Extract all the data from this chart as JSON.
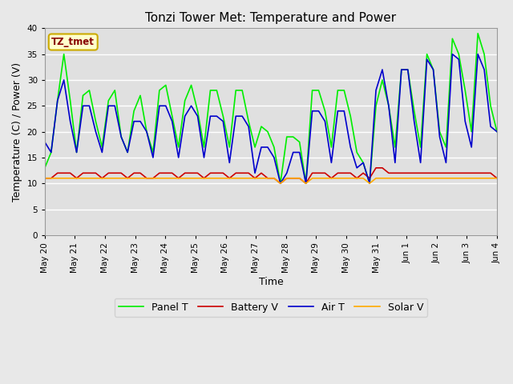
{
  "title": "Tonzi Tower Met: Temperature and Power",
  "xlabel": "Time",
  "ylabel": "Temperature (C) / Power (V)",
  "ylim": [
    0,
    40
  ],
  "yticks": [
    0,
    5,
    10,
    15,
    20,
    25,
    30,
    35,
    40
  ],
  "panel_color": "#00ee00",
  "battery_color": "#cc0000",
  "air_color": "#0000cc",
  "solar_color": "#ffaa00",
  "legend_label": "TZ_tmet",
  "series_names": [
    "Panel T",
    "Battery V",
    "Air T",
    "Solar V"
  ],
  "x_tick_labels": [
    "May 20",
    "May 21",
    "May 22",
    "May 23",
    "May 24",
    "May 25",
    "May 26",
    "May 27",
    "May 28",
    "May 29",
    "May 30",
    "May 31",
    "Jun 1",
    "Jun 2",
    "Jun 3",
    "Jun 4"
  ],
  "panel_t": [
    13,
    16,
    26,
    35,
    26,
    16,
    27,
    28,
    22,
    17,
    26,
    28,
    19,
    16,
    24,
    27,
    20,
    16,
    28,
    29,
    23,
    17,
    26,
    29,
    24,
    17,
    28,
    28,
    23,
    17,
    28,
    28,
    22,
    17,
    21,
    20,
    17,
    10,
    19,
    19,
    18,
    10,
    28,
    28,
    24,
    17,
    28,
    28,
    23,
    16,
    14,
    10,
    25,
    30,
    25,
    17,
    32,
    32,
    24,
    17,
    35,
    32,
    20,
    17,
    38,
    35,
    28,
    20,
    39,
    35,
    25,
    20
  ],
  "battery_v": [
    11,
    11,
    12,
    12,
    12,
    11,
    12,
    12,
    12,
    11,
    12,
    12,
    12,
    11,
    12,
    12,
    11,
    11,
    12,
    12,
    12,
    11,
    12,
    12,
    12,
    11,
    12,
    12,
    12,
    11,
    12,
    12,
    12,
    11,
    12,
    11,
    11,
    10,
    11,
    11,
    11,
    10,
    12,
    12,
    12,
    11,
    12,
    12,
    12,
    11,
    12,
    11,
    13,
    13,
    12,
    12,
    12,
    12,
    12,
    12,
    12,
    12,
    12,
    12,
    12,
    12,
    12,
    12,
    12,
    12,
    12,
    11
  ],
  "air_t": [
    18,
    16,
    26,
    30,
    22,
    16,
    25,
    25,
    20,
    16,
    25,
    25,
    19,
    16,
    22,
    22,
    20,
    15,
    25,
    25,
    22,
    15,
    23,
    25,
    23,
    15,
    23,
    23,
    22,
    14,
    23,
    23,
    21,
    12,
    17,
    17,
    15,
    10,
    12,
    16,
    16,
    10,
    24,
    24,
    22,
    14,
    24,
    24,
    17,
    13,
    14,
    10,
    28,
    32,
    25,
    14,
    32,
    32,
    22,
    14,
    34,
    32,
    19,
    14,
    35,
    34,
    22,
    17,
    35,
    32,
    21,
    20
  ],
  "solar_v": [
    11,
    11,
    11,
    11,
    11,
    11,
    11,
    11,
    11,
    11,
    11,
    11,
    11,
    11,
    11,
    11,
    11,
    11,
    11,
    11,
    11,
    11,
    11,
    11,
    11,
    11,
    11,
    11,
    11,
    11,
    11,
    11,
    11,
    11,
    11,
    11,
    11,
    10,
    11,
    11,
    11,
    10,
    11,
    11,
    11,
    11,
    11,
    11,
    11,
    11,
    11,
    10,
    11,
    11,
    11,
    11,
    11,
    11,
    11,
    11,
    11,
    11,
    11,
    11,
    11,
    11,
    11,
    11,
    11,
    11,
    11,
    11
  ]
}
